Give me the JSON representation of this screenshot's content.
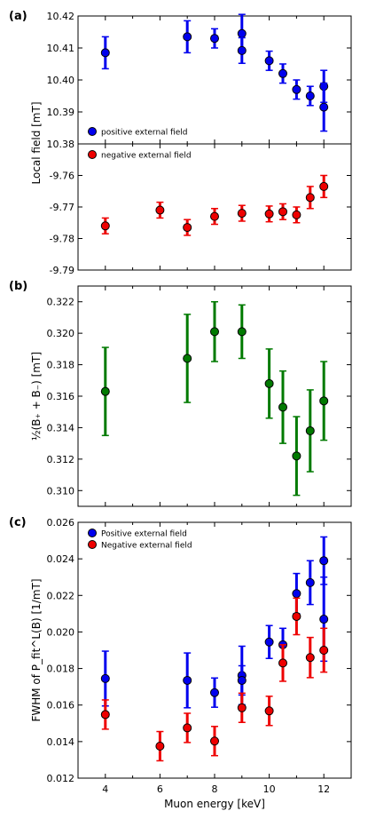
{
  "chart_data": [
    {
      "type": "scatter",
      "panel_label": "(a)",
      "ylabel": "Local field [mT]",
      "ylim": [
        10.38,
        10.42
      ],
      "yticks": [
        "10.38",
        "10.39",
        "10.40",
        "10.41",
        "10.42"
      ],
      "legend": {
        "placement": "bottom-left",
        "entries": [
          {
            "name": "positive external field",
            "color": "#0000ee"
          }
        ]
      },
      "series": [
        {
          "name": "positive external field",
          "color": "#0000ee",
          "points": [
            {
              "x": 4,
              "y": 10.4085,
              "err": 0.005
            },
            {
              "x": 7,
              "y": 10.4135,
              "err": 0.005
            },
            {
              "x": 8,
              "y": 10.413,
              "err": 0.003
            },
            {
              "x": 9,
              "y": 10.4145,
              "err": 0.006
            },
            {
              "x": 9,
              "y": 10.4092,
              "err": 0.004
            },
            {
              "x": 10,
              "y": 10.406,
              "err": 0.003
            },
            {
              "x": 10.5,
              "y": 10.402,
              "err": 0.003
            },
            {
              "x": 11,
              "y": 10.397,
              "err": 0.003
            },
            {
              "x": 11.5,
              "y": 10.395,
              "err": 0.003
            },
            {
              "x": 12,
              "y": 10.398,
              "err": 0.005
            },
            {
              "x": 12,
              "y": 10.3915,
              "err": 0.0075
            }
          ]
        }
      ]
    },
    {
      "type": "scatter",
      "ylim": [
        -9.79,
        -9.75
      ],
      "yticks": [
        "-9.79",
        "-9.78",
        "-9.77",
        "-9.76"
      ],
      "legend": {
        "placement": "top-left",
        "entries": [
          {
            "name": "negative external field",
            "color": "#ee0000"
          }
        ]
      },
      "series": [
        {
          "name": "negative external field",
          "color": "#ee0000",
          "points": [
            {
              "x": 4,
              "y": -9.776,
              "err": 0.0025
            },
            {
              "x": 6,
              "y": -9.771,
              "err": 0.0025
            },
            {
              "x": 7,
              "y": -9.7765,
              "err": 0.0025
            },
            {
              "x": 8,
              "y": -9.773,
              "err": 0.0025
            },
            {
              "x": 9,
              "y": -9.772,
              "err": 0.0025
            },
            {
              "x": 10,
              "y": -9.7722,
              "err": 0.0025
            },
            {
              "x": 10.5,
              "y": -9.7715,
              "err": 0.0025
            },
            {
              "x": 11,
              "y": -9.7725,
              "err": 0.0025
            },
            {
              "x": 11.5,
              "y": -9.767,
              "err": 0.0035
            },
            {
              "x": 12,
              "y": -9.7635,
              "err": 0.0035
            }
          ]
        }
      ]
    },
    {
      "type": "scatter",
      "panel_label": "(b)",
      "ylabel": "½(B₊ + B₋) [mT]",
      "ylim": [
        0.309,
        0.323
      ],
      "yticks": [
        "0.310",
        "0.312",
        "0.314",
        "0.316",
        "0.318",
        "0.320",
        "0.322"
      ],
      "series": [
        {
          "color": "#007a00",
          "points": [
            {
              "x": 4,
              "y": 0.3163,
              "err": 0.0028
            },
            {
              "x": 7,
              "y": 0.3184,
              "err": 0.0028
            },
            {
              "x": 8,
              "y": 0.3201,
              "err": 0.0019
            },
            {
              "x": 9,
              "y": 0.3201,
              "err": 0.0017
            },
            {
              "x": 10,
              "y": 0.3168,
              "err": 0.0022
            },
            {
              "x": 10.5,
              "y": 0.3153,
              "err": 0.0023
            },
            {
              "x": 11,
              "y": 0.3122,
              "err": 0.0025
            },
            {
              "x": 11.5,
              "y": 0.3138,
              "err": 0.0026
            },
            {
              "x": 12,
              "y": 0.3157,
              "err": 0.0025
            }
          ]
        }
      ]
    },
    {
      "type": "scatter",
      "panel_label": "(c)",
      "ylabel": "FWHM of P_fit^L(B) [1/mT]",
      "xlabel": "Muon energy [keV]",
      "ylim": [
        0.012,
        0.026
      ],
      "xlim": [
        3,
        13
      ],
      "yticks": [
        "0.012",
        "0.014",
        "0.016",
        "0.018",
        "0.020",
        "0.022",
        "0.024",
        "0.026"
      ],
      "xticks": [
        "4",
        "6",
        "8",
        "10",
        "12"
      ],
      "legend": {
        "placement": "top-left",
        "entries": [
          {
            "name": "Positive external field",
            "color": "#0000ee"
          },
          {
            "name": "Negative external field",
            "color": "#ee0000"
          }
        ]
      },
      "series": [
        {
          "name": "Positive external field",
          "color": "#0000ee",
          "points": [
            {
              "x": 4,
              "y": 0.01745,
              "err": 0.0015
            },
            {
              "x": 7,
              "y": 0.01735,
              "err": 0.0015
            },
            {
              "x": 8,
              "y": 0.01668,
              "err": 0.0008
            },
            {
              "x": 9,
              "y": 0.01762,
              "err": 0.0016
            },
            {
              "x": 9,
              "y": 0.01735,
              "err": 0.0008
            },
            {
              "x": 10,
              "y": 0.01945,
              "err": 0.0009
            },
            {
              "x": 10.5,
              "y": 0.0193,
              "err": 0.0009
            },
            {
              "x": 11,
              "y": 0.0221,
              "err": 0.0011
            },
            {
              "x": 11.5,
              "y": 0.0227,
              "err": 0.0012
            },
            {
              "x": 12,
              "y": 0.0239,
              "err": 0.0013
            },
            {
              "x": 12,
              "y": 0.0207,
              "err": 0.0023
            }
          ]
        },
        {
          "name": "Negative external field",
          "color": "#ee0000",
          "points": [
            {
              "x": 4,
              "y": 0.01548,
              "err": 0.0008
            },
            {
              "x": 6,
              "y": 0.01375,
              "err": 0.0008
            },
            {
              "x": 7,
              "y": 0.01475,
              "err": 0.0008
            },
            {
              "x": 8,
              "y": 0.01403,
              "err": 0.0008
            },
            {
              "x": 9,
              "y": 0.01585,
              "err": 0.0008
            },
            {
              "x": 10,
              "y": 0.01568,
              "err": 0.0008
            },
            {
              "x": 10.5,
              "y": 0.0183,
              "err": 0.001
            },
            {
              "x": 11,
              "y": 0.02085,
              "err": 0.001
            },
            {
              "x": 11.5,
              "y": 0.0186,
              "err": 0.0011
            },
            {
              "x": 12,
              "y": 0.019,
              "err": 0.0012
            }
          ]
        }
      ]
    }
  ]
}
